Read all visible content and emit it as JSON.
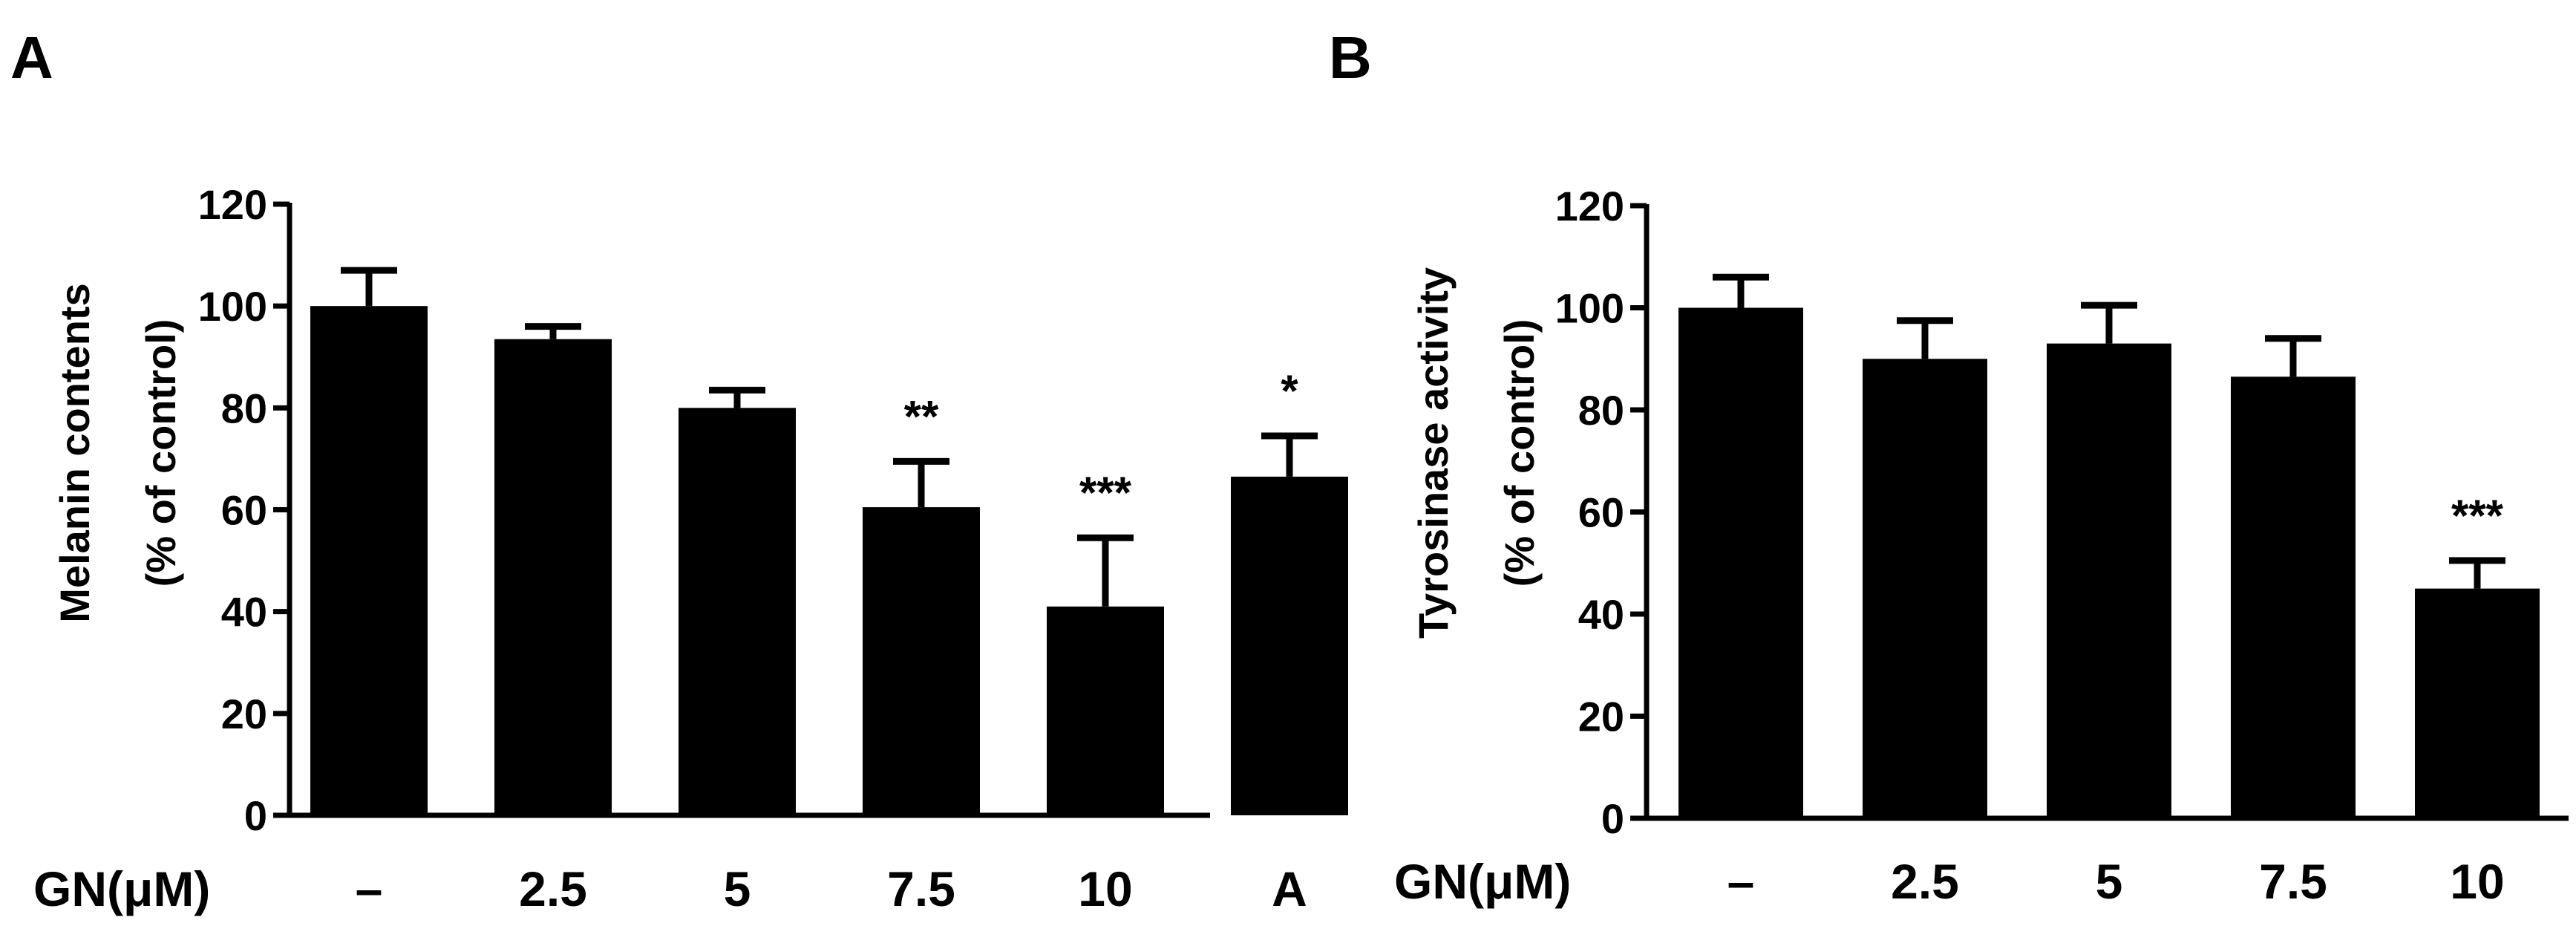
{
  "colors": {
    "bar": "#000000",
    "axis": "#000000",
    "background": "#ffffff"
  },
  "chart_data": [
    {
      "panel_label": "A",
      "type": "bar",
      "ylabel_line1": "Melanin contents",
      "ylabel_line2": "(% of control)",
      "xlabel": "GN(μM)",
      "categories": [
        "–",
        "2.5",
        "5",
        "7.5",
        "10",
        "A"
      ],
      "values": [
        100,
        93.5,
        80,
        60.5,
        41,
        66.5
      ],
      "errors": [
        7,
        2.5,
        3.5,
        9,
        13.5,
        8
      ],
      "significance": [
        "",
        "",
        "",
        "**",
        "***",
        "*"
      ],
      "ylim": [
        0,
        120
      ],
      "yticks": [
        0,
        20,
        40,
        60,
        80,
        100,
        120
      ]
    },
    {
      "panel_label": "B",
      "type": "bar",
      "ylabel_line1": "Tyrosinase activity",
      "ylabel_line2": "(% of control)",
      "xlabel": "GN(μM)",
      "categories": [
        "–",
        "2.5",
        "5",
        "7.5",
        "10"
      ],
      "values": [
        100,
        90,
        93,
        86.5,
        45
      ],
      "errors": [
        6,
        7.5,
        7.5,
        7.5,
        5.5
      ],
      "significance": [
        "",
        "",
        "",
        "",
        "***"
      ],
      "ylim": [
        0,
        120
      ],
      "yticks": [
        0,
        20,
        40,
        60,
        80,
        100,
        120
      ]
    }
  ]
}
